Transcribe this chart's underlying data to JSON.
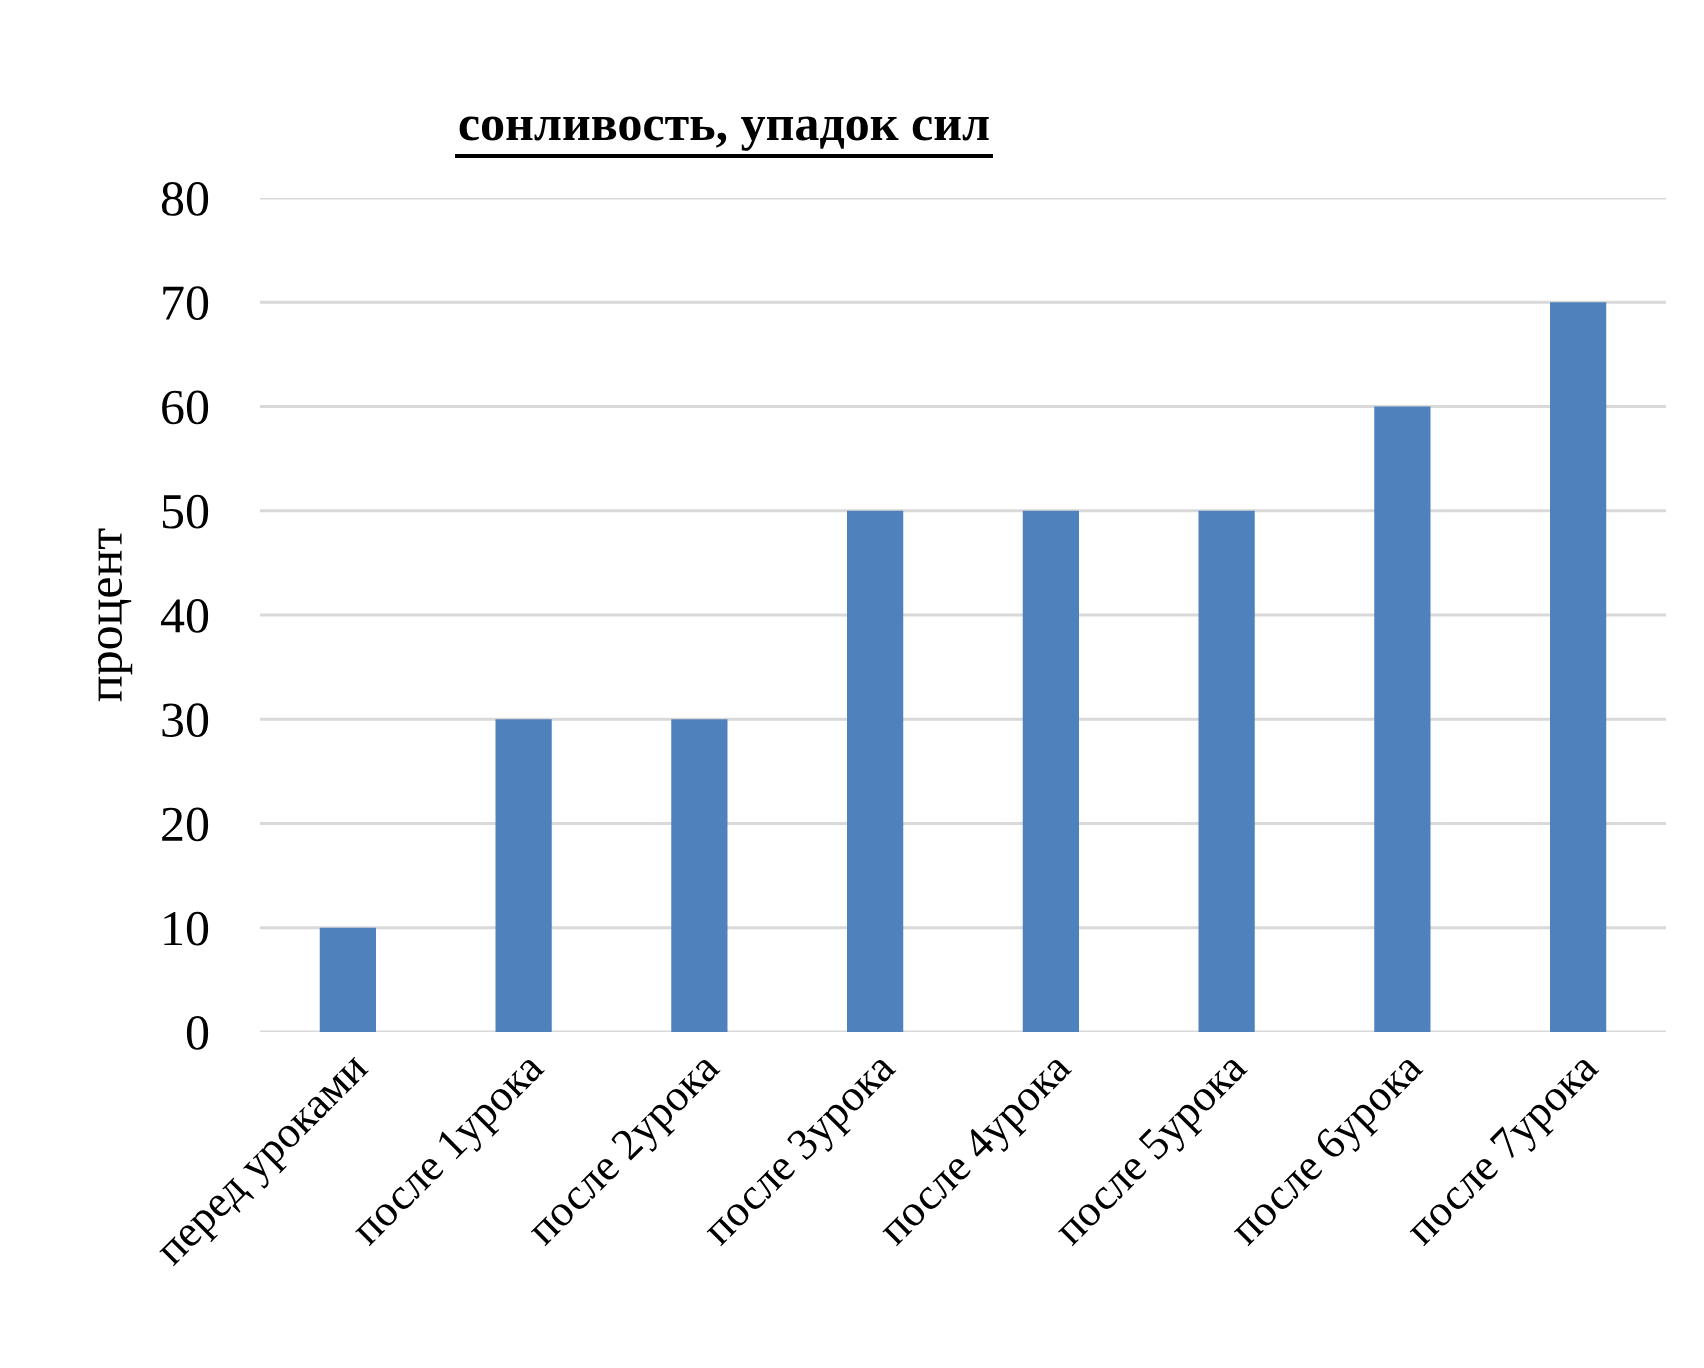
{
  "chart_data": {
    "type": "bar",
    "title": "сонливость, упадок сил",
    "ylabel": "процент",
    "categories": [
      "перед уроками",
      "после 1урока",
      "после 2урока",
      "после 3урока",
      "после 4урока",
      "после 5урока",
      "после 6урока",
      "после 7урока"
    ],
    "values": [
      10,
      30,
      30,
      50,
      50,
      50,
      60,
      70
    ],
    "color": "#4f81bd",
    "ylim": [
      0,
      80
    ],
    "yticks": [
      0,
      10,
      20,
      30,
      40,
      50,
      60,
      70,
      80
    ],
    "grid": "y"
  }
}
